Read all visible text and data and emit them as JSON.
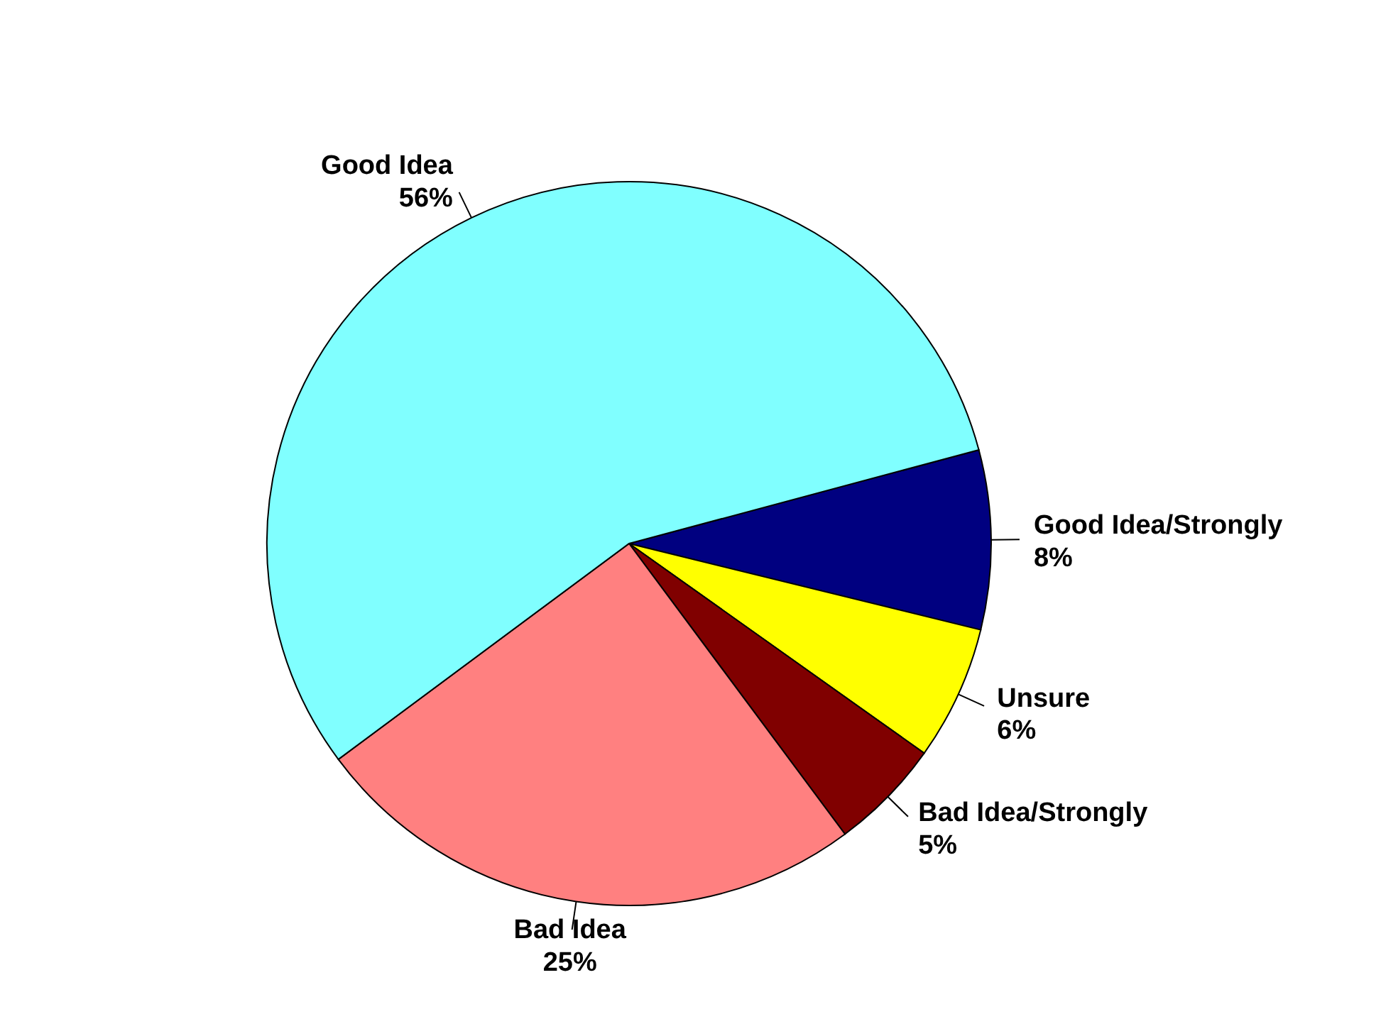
{
  "chart_data": {
    "type": "pie",
    "categories": [
      "Good Idea/Strongly",
      "Unsure",
      "Bad Idea/Strongly",
      "Bad Idea",
      "Good Idea"
    ],
    "values": [
      8,
      6,
      5,
      25,
      56
    ],
    "value_labels": [
      "8%",
      "6%",
      "5%",
      "25%",
      "56%"
    ],
    "colors": [
      "#000080",
      "#ffff00",
      "#800000",
      "#ff8080",
      "#80ffff"
    ],
    "legend": false
  }
}
